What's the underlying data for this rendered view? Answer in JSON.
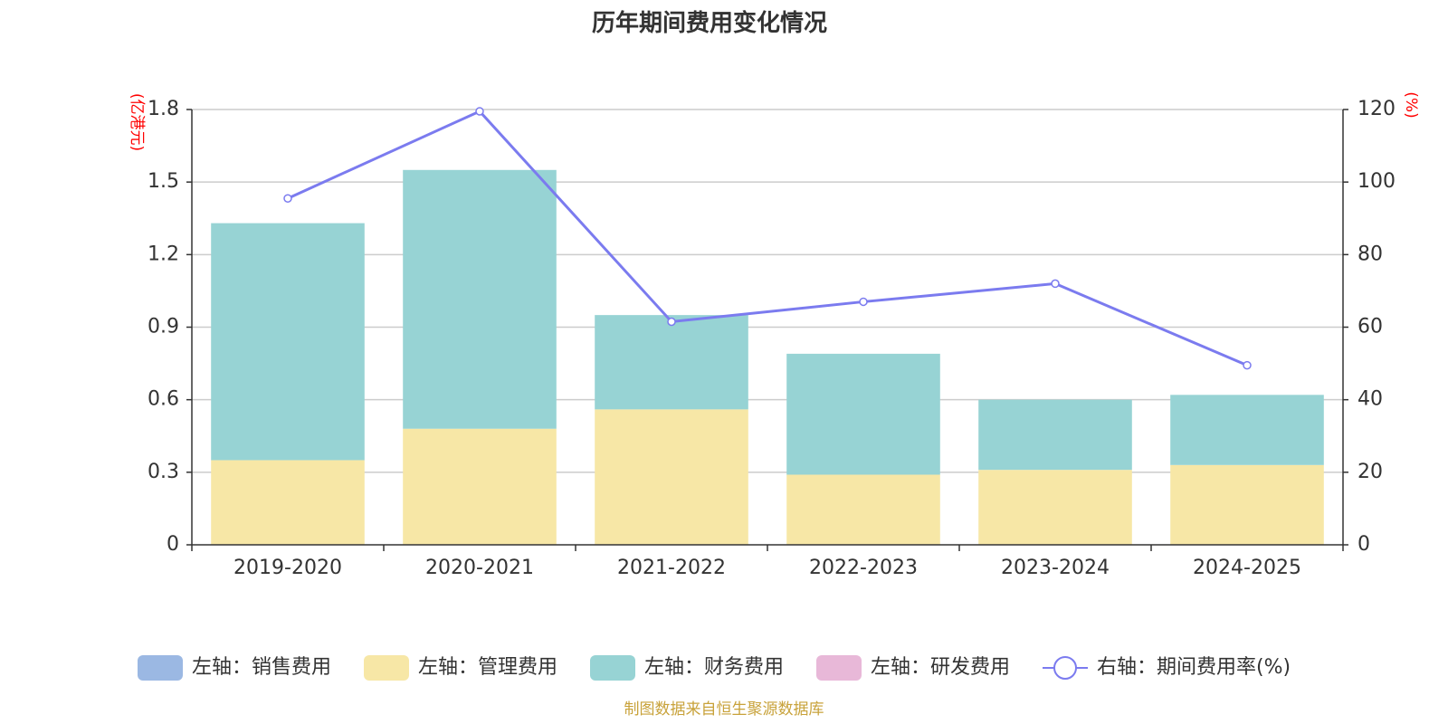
{
  "chart_data": {
    "type": "bar",
    "title": "历年期间费用变化情况",
    "categories": [
      "2019-2020",
      "2020-2021",
      "2021-2022",
      "2022-2023",
      "2023-2024",
      "2024-2025"
    ],
    "y_left": {
      "unit": "(亿港元)",
      "ylim": [
        0,
        1.8
      ],
      "ticks": [
        "0",
        "0.3",
        "0.6",
        "0.9",
        "1.2",
        "1.5",
        "1.8"
      ]
    },
    "y_right": {
      "unit": "(%)",
      "ylim": [
        0,
        120
      ],
      "ticks": [
        "0",
        "20",
        "40",
        "60",
        "80",
        "100",
        "120"
      ]
    },
    "grid": true,
    "legend_position": "bottom",
    "series": [
      {
        "name": "左轴：销售费用",
        "type": "bar",
        "axis": "left",
        "color": "#9bb8e3",
        "values": [
          0,
          0,
          0,
          0,
          0,
          0
        ]
      },
      {
        "name": "左轴：管理费用",
        "type": "bar",
        "axis": "left",
        "color": "#f7e7a6",
        "values": [
          0.35,
          0.48,
          0.56,
          0.29,
          0.31,
          0.33
        ]
      },
      {
        "name": "左轴：财务费用",
        "type": "bar",
        "axis": "left",
        "color": "#97d3d4",
        "values": [
          0.98,
          1.07,
          0.39,
          0.5,
          0.29,
          0.29
        ]
      },
      {
        "name": "左轴：研发费用",
        "type": "bar",
        "axis": "left",
        "color": "#e8b8d8",
        "values": [
          0,
          0,
          0,
          0,
          0,
          0
        ]
      },
      {
        "name": "右轴：期间费用率(%)",
        "type": "line",
        "axis": "right",
        "color": "#7b7bef",
        "values": [
          95.5,
          119.5,
          61.5,
          67.0,
          72.0,
          49.5
        ]
      }
    ]
  },
  "source_note": "制图数据来自恒生聚源数据库"
}
